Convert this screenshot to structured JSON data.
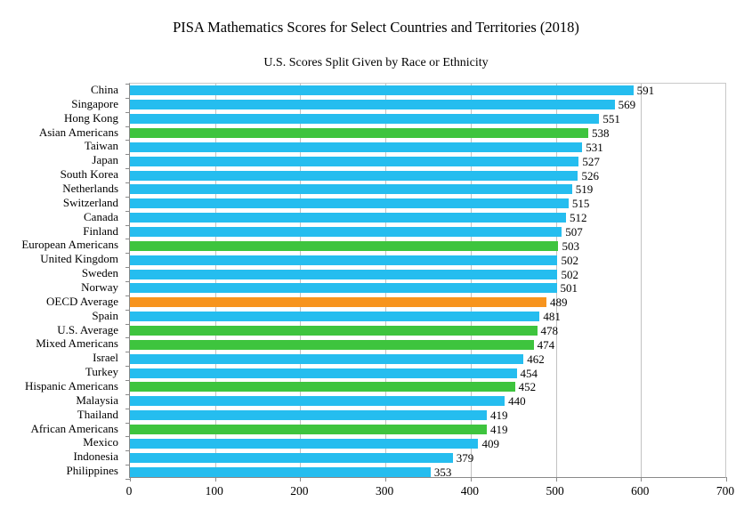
{
  "chart_data": {
    "type": "bar",
    "orientation": "horizontal",
    "title": "PISA Mathematics Scores for Select Countries and Territories (2018)",
    "subtitle": "U.S. Scores Split Given by Race or Ethnicity",
    "xlim": [
      0,
      700
    ],
    "x_ticks": [
      0,
      100,
      200,
      300,
      400,
      500,
      600,
      700
    ],
    "grid": "vertical-gridlines-every-100",
    "legend": "none",
    "value_labels": true,
    "colors": {
      "country": "#25bdef",
      "us_group": "#3ec43e",
      "oecd": "#f7941e"
    },
    "bars": [
      {
        "label": "China",
        "value": 591,
        "group": "country"
      },
      {
        "label": "Singapore",
        "value": 569,
        "group": "country"
      },
      {
        "label": "Hong Kong",
        "value": 551,
        "group": "country"
      },
      {
        "label": "Asian Americans",
        "value": 538,
        "group": "us_group"
      },
      {
        "label": "Taiwan",
        "value": 531,
        "group": "country"
      },
      {
        "label": "Japan",
        "value": 527,
        "group": "country"
      },
      {
        "label": "South Korea",
        "value": 526,
        "group": "country"
      },
      {
        "label": "Netherlands",
        "value": 519,
        "group": "country"
      },
      {
        "label": "Switzerland",
        "value": 515,
        "group": "country"
      },
      {
        "label": "Canada",
        "value": 512,
        "group": "country"
      },
      {
        "label": "Finland",
        "value": 507,
        "group": "country"
      },
      {
        "label": "European Americans",
        "value": 503,
        "group": "us_group"
      },
      {
        "label": "United Kingdom",
        "value": 502,
        "group": "country"
      },
      {
        "label": "Sweden",
        "value": 502,
        "group": "country"
      },
      {
        "label": "Norway",
        "value": 501,
        "group": "country"
      },
      {
        "label": "OECD Average",
        "value": 489,
        "group": "oecd"
      },
      {
        "label": "Spain",
        "value": 481,
        "group": "country"
      },
      {
        "label": "U.S. Average",
        "value": 478,
        "group": "us_group"
      },
      {
        "label": "Mixed Americans",
        "value": 474,
        "group": "us_group"
      },
      {
        "label": "Israel",
        "value": 462,
        "group": "country"
      },
      {
        "label": "Turkey",
        "value": 454,
        "group": "country"
      },
      {
        "label": "Hispanic Americans",
        "value": 452,
        "group": "us_group"
      },
      {
        "label": "Malaysia",
        "value": 440,
        "group": "country"
      },
      {
        "label": "Thailand",
        "value": 419,
        "group": "country"
      },
      {
        "label": "African Americans",
        "value": 419,
        "group": "us_group"
      },
      {
        "label": "Mexico",
        "value": 409,
        "group": "country"
      },
      {
        "label": "Indonesia",
        "value": 379,
        "group": "country"
      },
      {
        "label": "Philippines",
        "value": 353,
        "group": "country"
      }
    ]
  }
}
